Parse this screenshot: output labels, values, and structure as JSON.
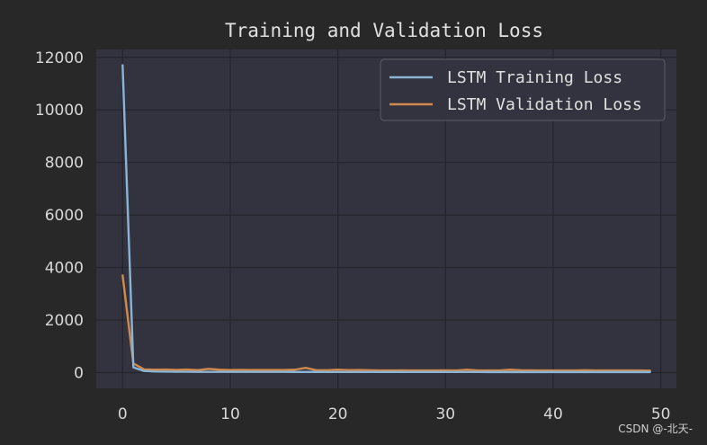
{
  "chart_data": {
    "type": "line",
    "title": "Training and Validation Loss",
    "xlabel": "",
    "ylabel": "",
    "xlim": [
      -2.45,
      51.45
    ],
    "ylim": [
      -600,
      12300
    ],
    "xticks": [
      0,
      10,
      20,
      30,
      40,
      50
    ],
    "yticks": [
      0,
      2000,
      4000,
      6000,
      8000,
      10000,
      12000
    ],
    "grid": true,
    "legend": "top-right",
    "x": [
      0,
      1,
      2,
      3,
      4,
      5,
      6,
      7,
      8,
      9,
      10,
      11,
      12,
      13,
      14,
      15,
      16,
      17,
      18,
      19,
      20,
      21,
      22,
      23,
      24,
      25,
      26,
      27,
      28,
      29,
      30,
      31,
      32,
      33,
      34,
      35,
      36,
      37,
      38,
      39,
      40,
      41,
      42,
      43,
      44,
      45,
      46,
      47,
      48,
      49
    ],
    "series": [
      {
        "name": "LSTM Training Loss",
        "color": "#8ab4d6",
        "values": [
          11700,
          200,
          60,
          40,
          35,
          30,
          30,
          28,
          28,
          27,
          27,
          26,
          26,
          25,
          25,
          25,
          24,
          24,
          24,
          23,
          23,
          23,
          23,
          22,
          22,
          22,
          22,
          22,
          21,
          21,
          21,
          21,
          21,
          21,
          20,
          20,
          20,
          20,
          20,
          20,
          20,
          20,
          20,
          20,
          20,
          20,
          20,
          20,
          20,
          20
        ]
      },
      {
        "name": "LSTM Validation Loss",
        "color": "#d08a4e",
        "values": [
          3700,
          350,
          120,
          110,
          115,
          105,
          115,
          95,
          140,
          110,
          100,
          105,
          100,
          100,
          100,
          100,
          110,
          180,
          90,
          90,
          110,
          95,
          100,
          90,
          80,
          80,
          85,
          80,
          80,
          80,
          85,
          80,
          110,
          80,
          80,
          80,
          110,
          90,
          85,
          80,
          80,
          80,
          80,
          90,
          80,
          80,
          80,
          80,
          80,
          75
        ]
      }
    ]
  },
  "watermark": "CSDN @-北天-"
}
